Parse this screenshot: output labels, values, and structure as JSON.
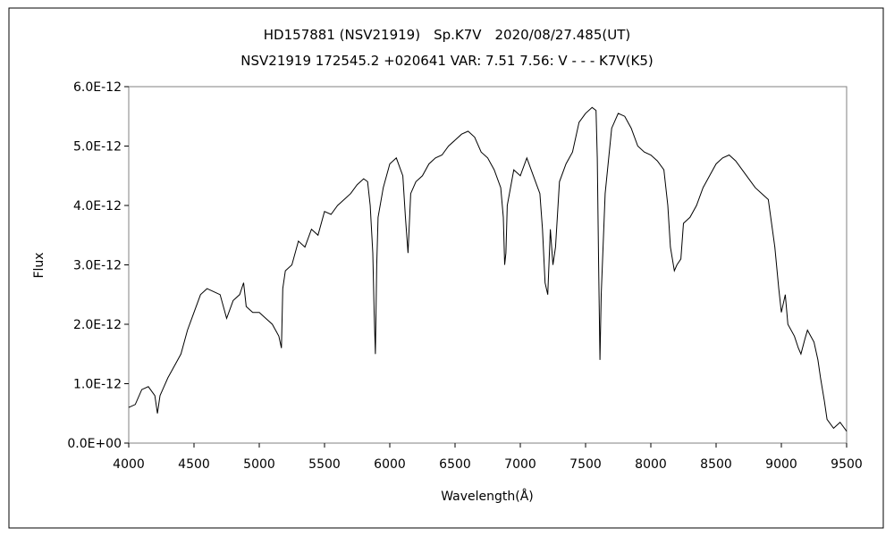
{
  "chart_data": {
    "type": "line",
    "title": "HD157881 (NSV21919)　Sp.K7V　2020/08/27.485(UT)",
    "subtitle": "NSV21919 172545.2 +020641 VAR: 7.51 7.56: V - - - K7V(K5)",
    "xlabel": "Wavelength(Å)",
    "ylabel": "Flux",
    "xlim": [
      4000,
      9500
    ],
    "ylim": [
      0,
      6e-12
    ],
    "grid": false,
    "legend": "none",
    "x_ticks": [
      "4000",
      "4500",
      "5000",
      "5500",
      "6000",
      "6500",
      "7000",
      "7500",
      "8000",
      "8500",
      "9000",
      "9500"
    ],
    "y_ticks": [
      "0.0E+00",
      "1.0E-12",
      "2.0E-12",
      "3.0E-12",
      "4.0E-12",
      "5.0E-12",
      "6.0E-12"
    ],
    "series": [
      {
        "color": "#000000",
        "x": [
          4000,
          4050,
          4100,
          4150,
          4200,
          4220,
          4240,
          4260,
          4300,
          4350,
          4400,
          4450,
          4500,
          4550,
          4600,
          4650,
          4700,
          4750,
          4800,
          4850,
          4880,
          4900,
          4950,
          5000,
          5050,
          5100,
          5150,
          5170,
          5180,
          5200,
          5250,
          5300,
          5350,
          5400,
          5450,
          5500,
          5550,
          5600,
          5650,
          5700,
          5750,
          5800,
          5830,
          5850,
          5870,
          5880,
          5890,
          5900,
          5910,
          5950,
          6000,
          6050,
          6100,
          6120,
          6140,
          6160,
          6200,
          6250,
          6300,
          6350,
          6400,
          6450,
          6500,
          6550,
          6600,
          6650,
          6700,
          6750,
          6800,
          6850,
          6870,
          6880,
          6890,
          6900,
          6950,
          7000,
          7050,
          7100,
          7150,
          7170,
          7190,
          7210,
          7230,
          7250,
          7270,
          7300,
          7350,
          7400,
          7450,
          7500,
          7550,
          7580,
          7590,
          7600,
          7610,
          7620,
          7650,
          7700,
          7750,
          7800,
          7850,
          7900,
          7950,
          8000,
          8050,
          8100,
          8130,
          8150,
          8180,
          8200,
          8230,
          8250,
          8300,
          8350,
          8400,
          8450,
          8500,
          8550,
          8600,
          8650,
          8700,
          8750,
          8800,
          8850,
          8900,
          8950,
          8980,
          9000,
          9030,
          9050,
          9100,
          9130,
          9150,
          9180,
          9200,
          9250,
          9280,
          9300,
          9330,
          9350,
          9400,
          9450,
          9500
        ],
        "y": [
          6e-13,
          6.5e-13,
          9e-13,
          9.5e-13,
          8e-13,
          5e-13,
          8e-13,
          9e-13,
          1.1e-12,
          1.3e-12,
          1.5e-12,
          1.9e-12,
          2.2e-12,
          2.5e-12,
          2.6e-12,
          2.55e-12,
          2.5e-12,
          2.1e-12,
          2.4e-12,
          2.5e-12,
          2.7e-12,
          2.3e-12,
          2.2e-12,
          2.2e-12,
          2.1e-12,
          2e-12,
          1.8e-12,
          1.6e-12,
          2.6e-12,
          2.9e-12,
          3e-12,
          3.4e-12,
          3.3e-12,
          3.6e-12,
          3.5e-12,
          3.9e-12,
          3.85e-12,
          4e-12,
          4.1e-12,
          4.2e-12,
          4.35e-12,
          4.45e-12,
          4.4e-12,
          4e-12,
          3.2e-12,
          2.2e-12,
          1.5e-12,
          3e-12,
          3.8e-12,
          4.3e-12,
          4.7e-12,
          4.8e-12,
          4.5e-12,
          3.8e-12,
          3.2e-12,
          4.2e-12,
          4.4e-12,
          4.5e-12,
          4.7e-12,
          4.8e-12,
          4.85e-12,
          5e-12,
          5.1e-12,
          5.2e-12,
          5.25e-12,
          5.15e-12,
          4.9e-12,
          4.8e-12,
          4.6e-12,
          4.3e-12,
          3.8e-12,
          3e-12,
          3.2e-12,
          4e-12,
          4.6e-12,
          4.5e-12,
          4.8e-12,
          4.5e-12,
          4.2e-12,
          3.6e-12,
          2.7e-12,
          2.5e-12,
          3.6e-12,
          3e-12,
          3.3e-12,
          4.4e-12,
          4.7e-12,
          4.9e-12,
          5.4e-12,
          5.55e-12,
          5.65e-12,
          5.6e-12,
          4.8e-12,
          3e-12,
          1.4e-12,
          2.5e-12,
          4.2e-12,
          5.3e-12,
          5.55e-12,
          5.5e-12,
          5.3e-12,
          5e-12,
          4.9e-12,
          4.85e-12,
          4.75e-12,
          4.6e-12,
          4e-12,
          3.3e-12,
          2.9e-12,
          3e-12,
          3.1e-12,
          3.7e-12,
          3.8e-12,
          4e-12,
          4.3e-12,
          4.5e-12,
          4.7e-12,
          4.8e-12,
          4.85e-12,
          4.75e-12,
          4.6e-12,
          4.45e-12,
          4.3e-12,
          4.2e-12,
          4.1e-12,
          3.3e-12,
          2.6e-12,
          2.2e-12,
          2.5e-12,
          2e-12,
          1.8e-12,
          1.6e-12,
          1.5e-12,
          1.75e-12,
          1.9e-12,
          1.7e-12,
          1.4e-12,
          1.1e-12,
          7e-13,
          4e-13,
          2.5e-13,
          3.5e-13,
          2e-13
        ]
      }
    ]
  }
}
